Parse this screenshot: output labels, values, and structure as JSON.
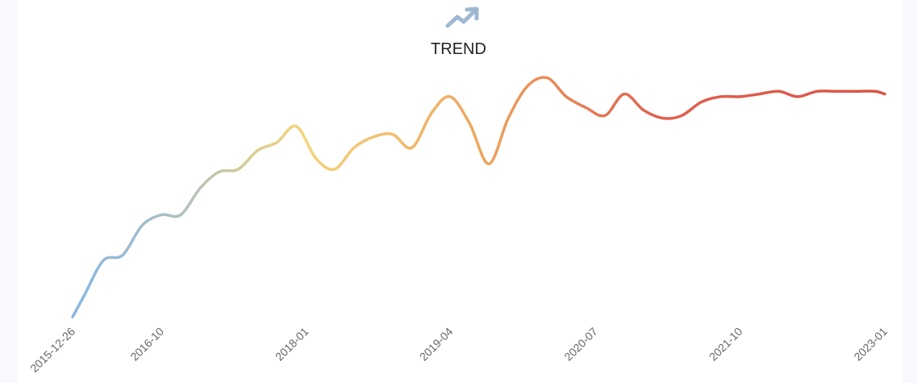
{
  "header": {
    "title": "TREND",
    "icon": "trending-up-icon"
  },
  "colors": {
    "gradient": [
      "#89b8e2",
      "#a9bfc4",
      "#f3d57a",
      "#eea65e",
      "#e06150",
      "#dc5446"
    ],
    "icon": "#9fb8d2"
  },
  "chart_data": {
    "type": "line",
    "title": "TREND",
    "xlabel": "",
    "ylabel": "",
    "grid": false,
    "legend": "none",
    "x_tick_labels": [
      "2015-12-26",
      "2016-10",
      "2018-01",
      "2019-04",
      "2020-07",
      "2021-10",
      "2023-01"
    ],
    "ylim": [
      0,
      100
    ],
    "series": [
      {
        "x": [
          "2015-12-26",
          "2016-02",
          "2016-04",
          "2016-06",
          "2016-08",
          "2016-10",
          "2016-12",
          "2017-02",
          "2017-04",
          "2017-06",
          "2017-08",
          "2017-10",
          "2017-12",
          "2018-02",
          "2018-04",
          "2018-06",
          "2018-08",
          "2018-10",
          "2018-12",
          "2019-02",
          "2019-04",
          "2019-06",
          "2019-08",
          "2019-10",
          "2019-12",
          "2020-02",
          "2020-04",
          "2020-06",
          "2020-08",
          "2020-10",
          "2020-12",
          "2021-02",
          "2021-04",
          "2021-06",
          "2021-08",
          "2021-10",
          "2021-12",
          "2022-02",
          "2022-04",
          "2022-06",
          "2022-08",
          "2022-10",
          "2022-12",
          "2023-01"
        ],
        "y": [
          0,
          8,
          21,
          23,
          34,
          38,
          38,
          48,
          54,
          55,
          62,
          65,
          71,
          59,
          55,
          63,
          67,
          68,
          63,
          76,
          82,
          72,
          57,
          74,
          86,
          89,
          82,
          78,
          75,
          83,
          77,
          74,
          75,
          80,
          82,
          82,
          83,
          84,
          82,
          84,
          84,
          84,
          84,
          83
        ],
        "note_suppress": true
      }
    ]
  }
}
